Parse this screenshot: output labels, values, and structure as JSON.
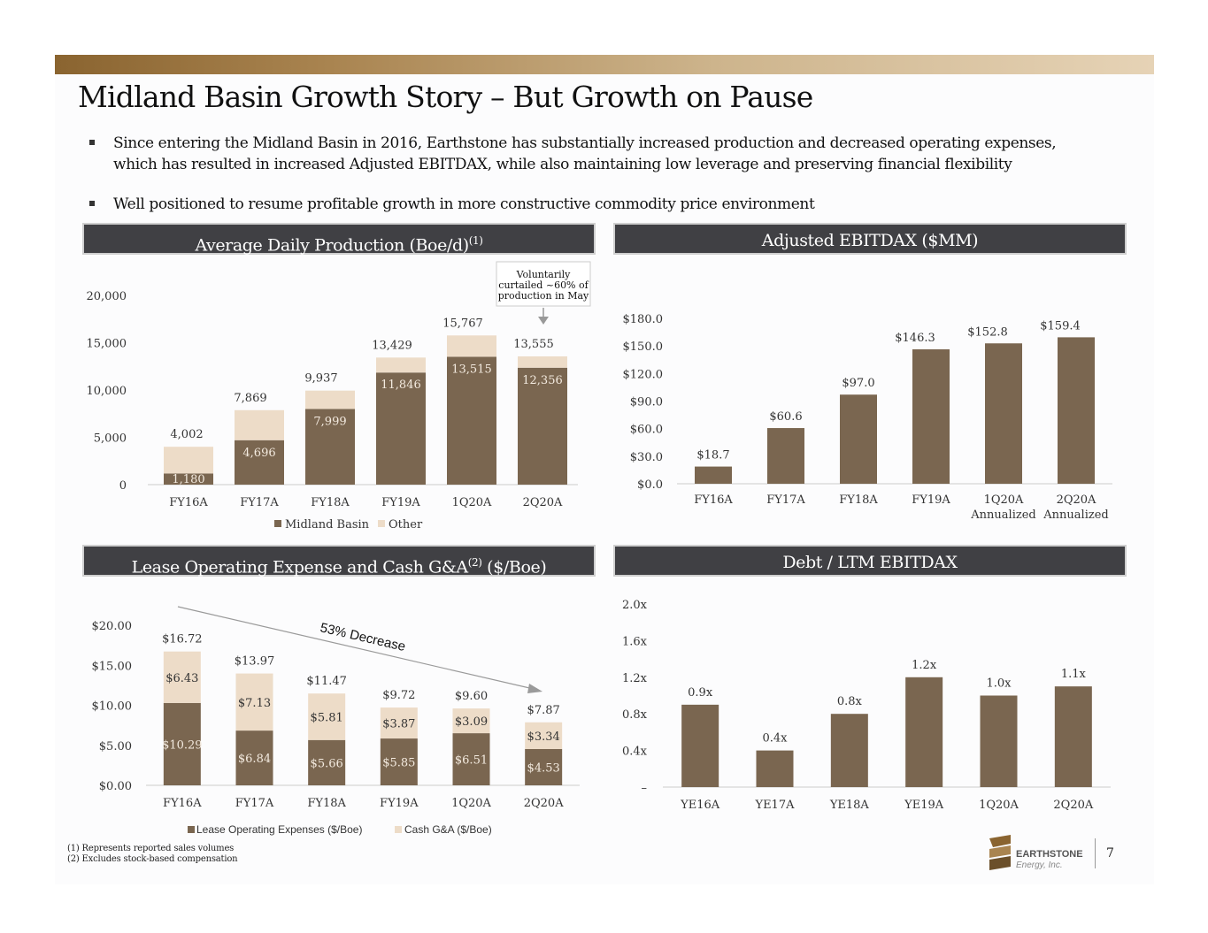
{
  "title": "Midland Basin Growth Story – But Growth on Pause",
  "bullets": [
    "Since entering the Midland Basin in 2016, Earthstone has substantially increased production and decreased operating expenses,",
    "which has resulted in increased Adjusted EBITDAX, while also maintaining low leverage and preserving financial flexibility",
    "Well positioned to resume profitable growth in more constructive commodity price environment"
  ],
  "panels": {
    "production": {
      "title": "Average Daily Production (Boe/d)",
      "sup": "(1)"
    },
    "ebitdax": {
      "title": "Adjusted EBITDAX ($MM)"
    },
    "loe": {
      "title": "Lease Operating Expense and Cash G&A",
      "sup": "(2)",
      "suffix": " ($/Boe)"
    },
    "debt": {
      "title": "Debt / LTM EBITDAX"
    }
  },
  "colors": {
    "dark": "#7a6650",
    "light": "#eddcc8",
    "header": "#404044"
  },
  "chart_data": [
    {
      "type": "bar",
      "stacked": true,
      "title": "Average Daily Production (Boe/d)",
      "categories": [
        "FY16A",
        "FY17A",
        "FY18A",
        "FY19A",
        "1Q20A",
        "2Q20A"
      ],
      "series": [
        {
          "name": "Midland Basin",
          "values": [
            1180,
            4696,
            7999,
            11846,
            13515,
            12356
          ],
          "labels": [
            "1,180",
            "4,696",
            "7,999",
            "11,846",
            "13,515",
            "12,356"
          ]
        },
        {
          "name": "Other",
          "values": [
            2822,
            3173,
            1938,
            1583,
            2252,
            1199
          ]
        }
      ],
      "totals": [
        4002,
        7869,
        9937,
        13429,
        15767,
        13555
      ],
      "total_labels": [
        "4,002",
        "7,869",
        "9,937",
        "13,429",
        "15,767",
        "13,555"
      ],
      "ylim": [
        0,
        20000
      ],
      "yticks": [
        0,
        5000,
        10000,
        15000,
        20000
      ],
      "ytick_labels": [
        "0",
        "5,000",
        "10,000",
        "15,000",
        "20,000"
      ],
      "legend": [
        "Midland Basin",
        "Other"
      ],
      "annotation": [
        "Voluntarily",
        "curtailed ~60% of",
        "production in May"
      ]
    },
    {
      "type": "bar",
      "title": "Adjusted EBITDAX ($MM)",
      "categories": [
        "FY16A",
        "FY17A",
        "FY18A",
        "FY19A",
        "1Q20A",
        "2Q20A"
      ],
      "category_sublabels": [
        "",
        "",
        "",
        "",
        "Annualized",
        "Annualized"
      ],
      "values": [
        18.7,
        60.6,
        97.0,
        146.3,
        152.8,
        159.4
      ],
      "value_labels": [
        "$18.7",
        "$60.6",
        "$97.0",
        "$146.3",
        "$152.8",
        "$159.4"
      ],
      "ylim": [
        0,
        180
      ],
      "yticks": [
        0,
        30,
        60,
        90,
        120,
        150,
        180
      ],
      "ytick_labels": [
        "$0.0",
        "$30.0",
        "$60.0",
        "$90.0",
        "$120.0",
        "$150.0",
        "$180.0"
      ]
    },
    {
      "type": "bar",
      "stacked": true,
      "title": "Lease Operating Expense and Cash G&A ($/Boe)",
      "categories": [
        "FY16A",
        "FY17A",
        "FY18A",
        "FY19A",
        "1Q20A",
        "2Q20A"
      ],
      "series": [
        {
          "name": "Lease Operating Expenses ($/Boe)",
          "values": [
            10.29,
            6.84,
            5.66,
            5.85,
            6.51,
            4.53
          ],
          "labels": [
            "$10.29",
            "$6.84",
            "$5.66",
            "$5.85",
            "$6.51",
            "$4.53"
          ]
        },
        {
          "name": "Cash G&A ($/Boe)",
          "values": [
            6.43,
            7.13,
            5.81,
            3.87,
            3.09,
            3.34
          ],
          "labels": [
            "$6.43",
            "$7.13",
            "$5.81",
            "$3.87",
            "$3.09",
            "$3.34"
          ]
        }
      ],
      "totals": [
        16.72,
        13.97,
        11.47,
        9.72,
        9.6,
        7.87
      ],
      "total_labels": [
        "$16.72",
        "$13.97",
        "$11.47",
        "$9.72",
        "$9.60",
        "$7.87"
      ],
      "ylim": [
        0,
        20
      ],
      "yticks": [
        0,
        5,
        10,
        15,
        20
      ],
      "ytick_labels": [
        "$0.00",
        "$5.00",
        "$10.00",
        "$15.00",
        "$20.00"
      ],
      "legend": [
        "Lease Operating Expenses ($/Boe)",
        "Cash G&A ($/Boe)"
      ],
      "annotation": "53% Decrease"
    },
    {
      "type": "bar",
      "title": "Debt / LTM EBITDAX",
      "categories": [
        "YE16A",
        "YE17A",
        "YE18A",
        "YE19A",
        "1Q20A",
        "2Q20A"
      ],
      "values": [
        0.9,
        0.4,
        0.8,
        1.2,
        1.0,
        1.1
      ],
      "value_labels": [
        "0.9x",
        "0.4x",
        "0.8x",
        "1.2x",
        "1.0x",
        "1.1x"
      ],
      "ylim": [
        0,
        2.0
      ],
      "yticks": [
        0,
        0.4,
        0.8,
        1.2,
        1.6,
        2.0
      ],
      "ytick_labels": [
        "–",
        "0.4x",
        "0.8x",
        "1.2x",
        "1.6x",
        "2.0x"
      ]
    }
  ],
  "footnotes": [
    "(1)   Represents reported sales volumes",
    "(2)   Excludes stock-based compensation"
  ],
  "logo": {
    "name": "EARTHSTONE",
    "sub": "Energy, Inc."
  },
  "page_number": "7"
}
